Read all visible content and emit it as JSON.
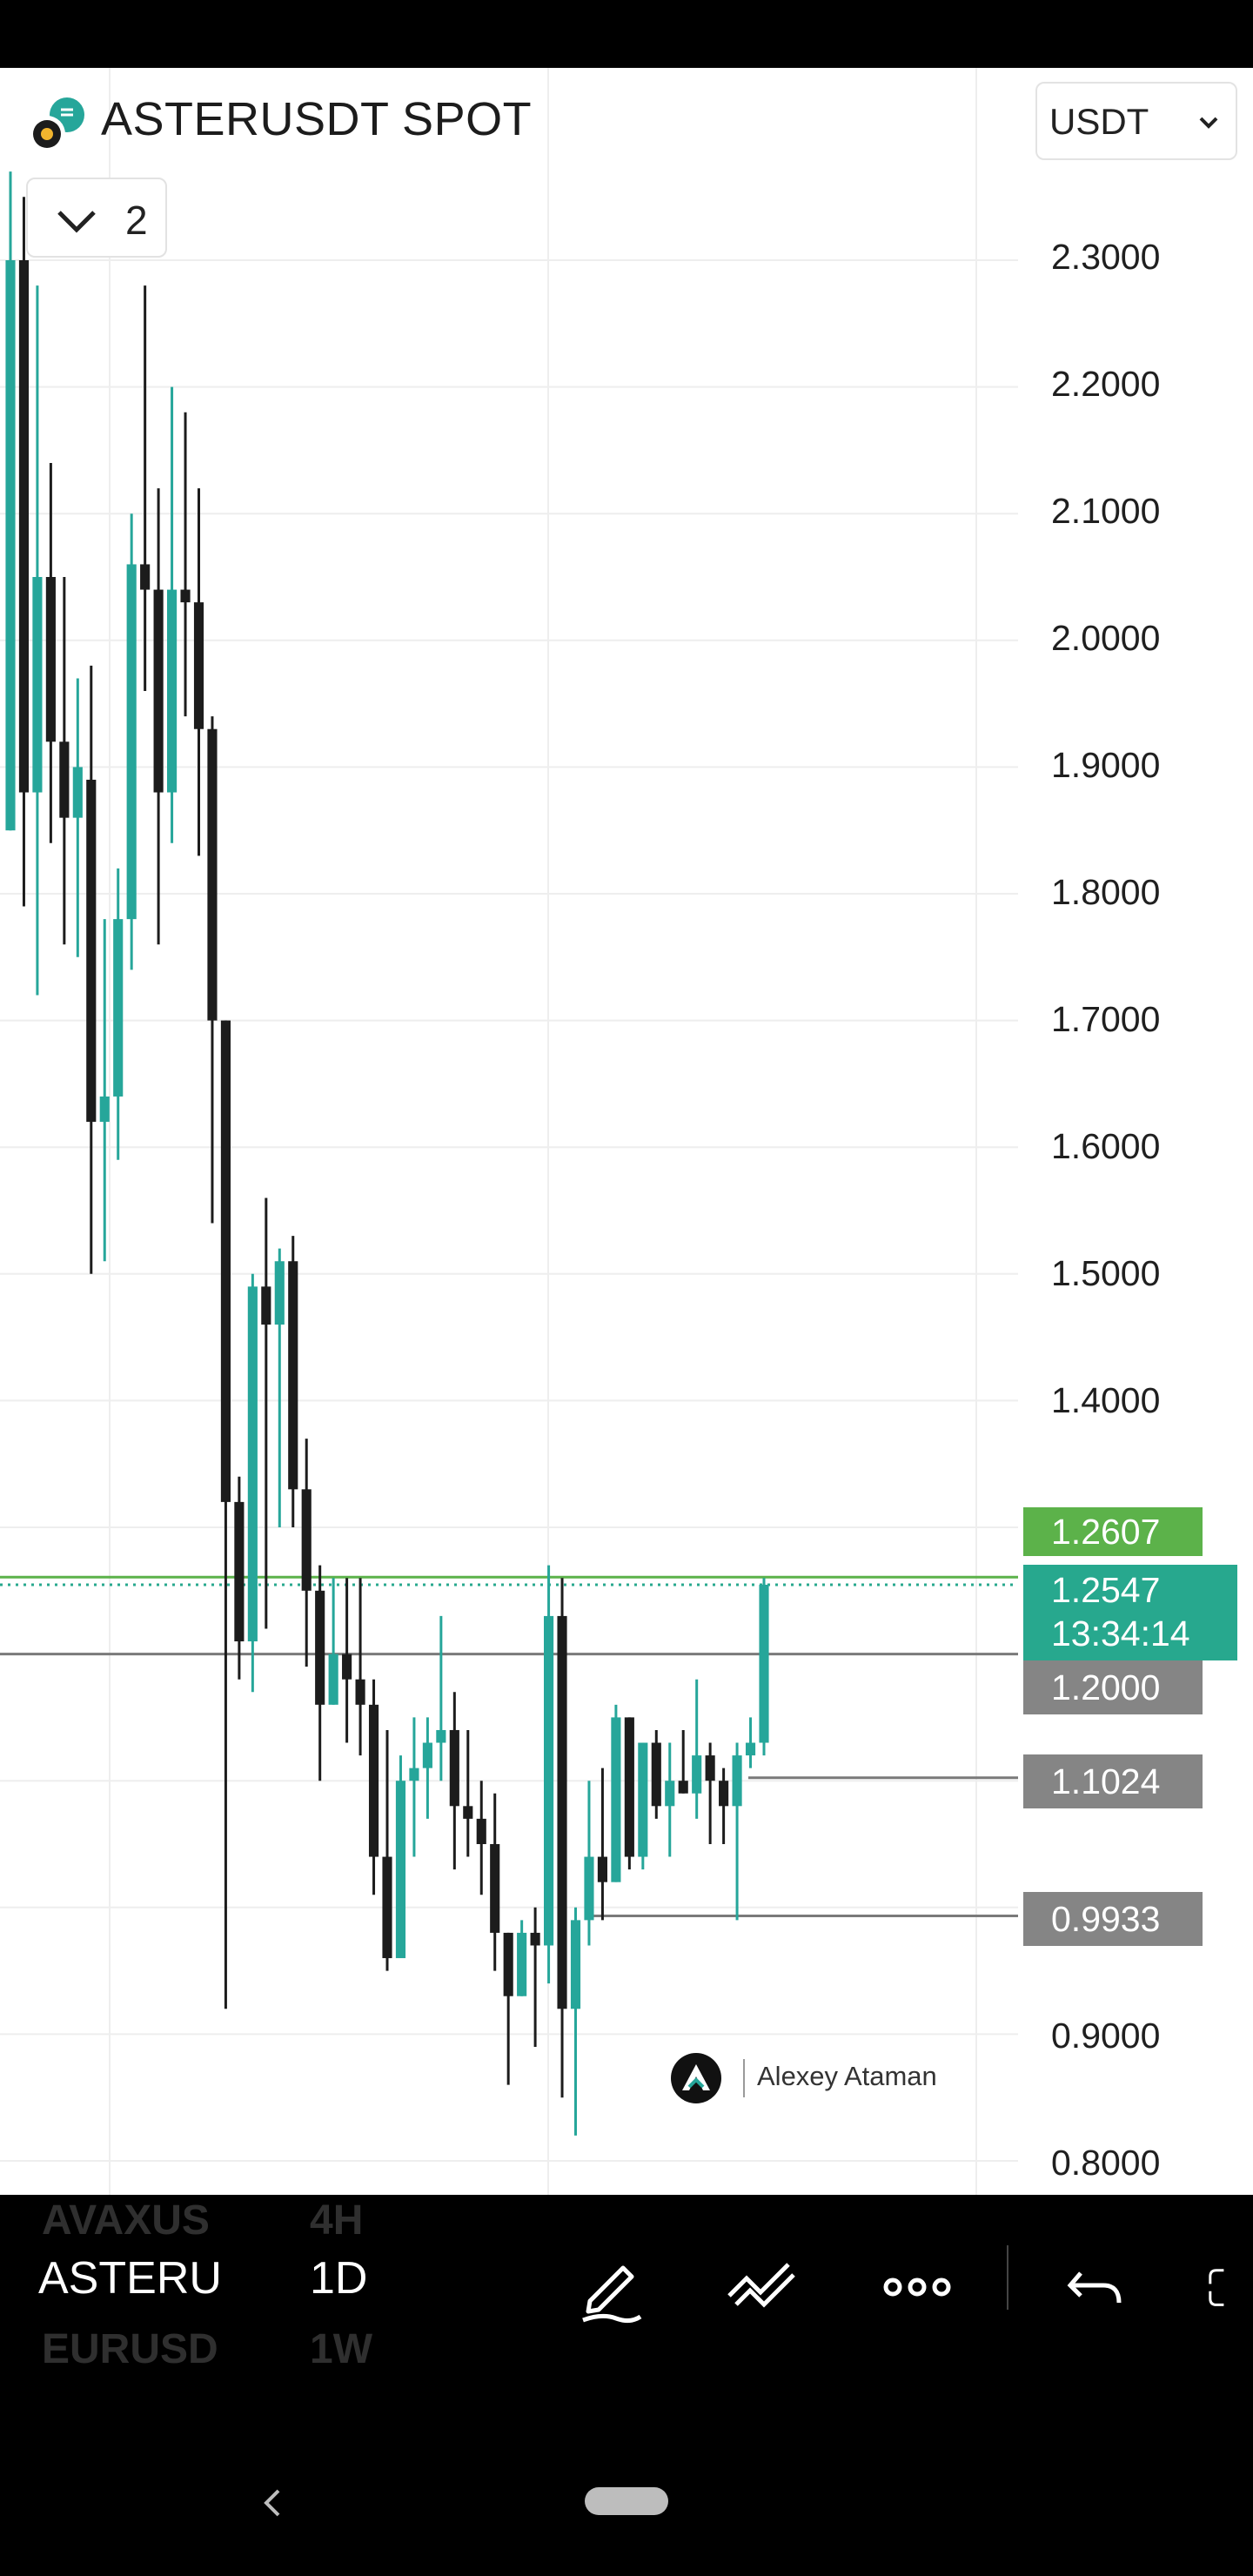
{
  "header": {
    "symbol_title": "ASTERUSDT SPOT",
    "currency": "USDT",
    "indicator_count": "2"
  },
  "price_axis": {
    "labels": [
      "2.3000",
      "2.2000",
      "2.1000",
      "2.0000",
      "1.9000",
      "1.8000",
      "1.7000",
      "1.6000",
      "1.5000",
      "1.4000",
      "0.9000",
      "0.8000"
    ]
  },
  "price_tags": [
    {
      "name": "high-tag",
      "text": "1.2607",
      "color": "#5cb24a"
    },
    {
      "name": "last-price-tag",
      "text": "1.2547",
      "sub": "13:34:14",
      "color": "#27a88e"
    },
    {
      "name": "level-1-2000-tag",
      "text": "1.2000",
      "color": "#858585"
    },
    {
      "name": "level-1-1024-tag",
      "text": "1.1024",
      "color": "#858585"
    },
    {
      "name": "level-0-9933-tag",
      "text": "0.9933",
      "color": "#858585"
    }
  ],
  "watermark": {
    "author": "Alexey Ataman",
    "icon": "author-logo-icon"
  },
  "toolbar": {
    "symbols": [
      "AVAXUS",
      "ASTERU",
      "EURUSD"
    ],
    "timeframes": [
      "4H",
      "1D",
      "1W"
    ],
    "tools": [
      "pen-icon",
      "trend-lines-icon",
      "more-icon",
      "undo-icon",
      "fullscreen-icon"
    ]
  },
  "colors": {
    "up": "#26a69a",
    "down": "#1c1c1c",
    "grid": "#eeeeee",
    "high_line": "#5cb24a",
    "last_line": "#27a88e",
    "level_line": "#7a7a7a"
  },
  "chart_data": {
    "type": "candlestick",
    "symbol": "ASTERUSDT SPOT",
    "y_axis": {
      "min": 0.78,
      "max": 2.38,
      "ticks": [
        2.3,
        2.2,
        2.1,
        2.0,
        1.9,
        1.8,
        1.7,
        1.6,
        1.5,
        1.4,
        0.9,
        0.8
      ]
    },
    "horizontal_levels": [
      1.2607,
      1.2547,
      1.2,
      1.1024,
      0.9933
    ],
    "candles": [
      {
        "o": 1.85,
        "h": 2.37,
        "l": 1.85,
        "c": 2.3,
        "up": true
      },
      {
        "o": 2.3,
        "h": 2.35,
        "l": 1.79,
        "c": 1.88,
        "up": false
      },
      {
        "o": 1.88,
        "h": 2.28,
        "l": 1.72,
        "c": 2.05,
        "up": true
      },
      {
        "o": 2.05,
        "h": 2.14,
        "l": 1.84,
        "c": 1.92,
        "up": false
      },
      {
        "o": 1.92,
        "h": 2.05,
        "l": 1.76,
        "c": 1.86,
        "up": false
      },
      {
        "o": 1.86,
        "h": 1.97,
        "l": 1.75,
        "c": 1.9,
        "up": true
      },
      {
        "o": 1.89,
        "h": 1.98,
        "l": 1.5,
        "c": 1.62,
        "up": false
      },
      {
        "o": 1.62,
        "h": 1.78,
        "l": 1.51,
        "c": 1.64,
        "up": true
      },
      {
        "o": 1.64,
        "h": 1.82,
        "l": 1.59,
        "c": 1.78,
        "up": true
      },
      {
        "o": 1.78,
        "h": 2.1,
        "l": 1.74,
        "c": 2.06,
        "up": true
      },
      {
        "o": 2.06,
        "h": 2.28,
        "l": 1.96,
        "c": 2.04,
        "up": false
      },
      {
        "o": 2.04,
        "h": 2.12,
        "l": 1.76,
        "c": 1.88,
        "up": false
      },
      {
        "o": 1.88,
        "h": 2.2,
        "l": 1.84,
        "c": 2.04,
        "up": true
      },
      {
        "o": 2.04,
        "h": 2.18,
        "l": 1.94,
        "c": 2.03,
        "up": false
      },
      {
        "o": 2.03,
        "h": 2.12,
        "l": 1.83,
        "c": 1.93,
        "up": false
      },
      {
        "o": 1.93,
        "h": 1.94,
        "l": 1.54,
        "c": 1.7,
        "up": false
      },
      {
        "o": 1.7,
        "h": 1.7,
        "l": 0.92,
        "c": 1.32,
        "up": false
      },
      {
        "o": 1.32,
        "h": 1.34,
        "l": 1.18,
        "c": 1.21,
        "up": false
      },
      {
        "o": 1.21,
        "h": 1.5,
        "l": 1.17,
        "c": 1.49,
        "up": true
      },
      {
        "o": 1.49,
        "h": 1.56,
        "l": 1.22,
        "c": 1.46,
        "up": false
      },
      {
        "o": 1.46,
        "h": 1.52,
        "l": 1.3,
        "c": 1.51,
        "up": true
      },
      {
        "o": 1.51,
        "h": 1.53,
        "l": 1.3,
        "c": 1.33,
        "up": false
      },
      {
        "o": 1.33,
        "h": 1.37,
        "l": 1.19,
        "c": 1.25,
        "up": false
      },
      {
        "o": 1.25,
        "h": 1.27,
        "l": 1.1,
        "c": 1.16,
        "up": false
      },
      {
        "o": 1.16,
        "h": 1.26,
        "l": 1.16,
        "c": 1.2,
        "up": true
      },
      {
        "o": 1.2,
        "h": 1.26,
        "l": 1.13,
        "c": 1.18,
        "up": false
      },
      {
        "o": 1.18,
        "h": 1.26,
        "l": 1.12,
        "c": 1.16,
        "up": false
      },
      {
        "o": 1.16,
        "h": 1.18,
        "l": 1.01,
        "c": 1.04,
        "up": false
      },
      {
        "o": 1.04,
        "h": 1.14,
        "l": 0.95,
        "c": 0.96,
        "up": false
      },
      {
        "o": 0.96,
        "h": 1.12,
        "l": 0.96,
        "c": 1.1,
        "up": true
      },
      {
        "o": 1.1,
        "h": 1.15,
        "l": 1.04,
        "c": 1.11,
        "up": true
      },
      {
        "o": 1.11,
        "h": 1.15,
        "l": 1.07,
        "c": 1.13,
        "up": true
      },
      {
        "o": 1.13,
        "h": 1.23,
        "l": 1.1,
        "c": 1.14,
        "up": true
      },
      {
        "o": 1.14,
        "h": 1.17,
        "l": 1.03,
        "c": 1.08,
        "up": false
      },
      {
        "o": 1.08,
        "h": 1.14,
        "l": 1.04,
        "c": 1.07,
        "up": false
      },
      {
        "o": 1.07,
        "h": 1.1,
        "l": 1.01,
        "c": 1.05,
        "up": false
      },
      {
        "o": 1.05,
        "h": 1.09,
        "l": 0.95,
        "c": 0.98,
        "up": false
      },
      {
        "o": 0.98,
        "h": 0.98,
        "l": 0.86,
        "c": 0.93,
        "up": false
      },
      {
        "o": 0.93,
        "h": 0.99,
        "l": 0.93,
        "c": 0.98,
        "up": true
      },
      {
        "o": 0.98,
        "h": 1.0,
        "l": 0.89,
        "c": 0.97,
        "up": false
      },
      {
        "o": 0.97,
        "h": 1.27,
        "l": 0.94,
        "c": 1.23,
        "up": true
      },
      {
        "o": 1.23,
        "h": 1.26,
        "l": 0.85,
        "c": 0.92,
        "up": false
      },
      {
        "o": 0.92,
        "h": 1.0,
        "l": 0.82,
        "c": 0.99,
        "up": true
      },
      {
        "o": 0.99,
        "h": 1.1,
        "l": 0.97,
        "c": 1.04,
        "up": true
      },
      {
        "o": 1.04,
        "h": 1.11,
        "l": 0.99,
        "c": 1.02,
        "up": false
      },
      {
        "o": 1.02,
        "h": 1.16,
        "l": 1.02,
        "c": 1.15,
        "up": true
      },
      {
        "o": 1.15,
        "h": 1.15,
        "l": 1.03,
        "c": 1.04,
        "up": false
      },
      {
        "o": 1.04,
        "h": 1.13,
        "l": 1.03,
        "c": 1.13,
        "up": true
      },
      {
        "o": 1.13,
        "h": 1.14,
        "l": 1.07,
        "c": 1.08,
        "up": false
      },
      {
        "o": 1.08,
        "h": 1.13,
        "l": 1.04,
        "c": 1.1,
        "up": true
      },
      {
        "o": 1.1,
        "h": 1.14,
        "l": 1.09,
        "c": 1.09,
        "up": false
      },
      {
        "o": 1.09,
        "h": 1.18,
        "l": 1.07,
        "c": 1.12,
        "up": true
      },
      {
        "o": 1.12,
        "h": 1.13,
        "l": 1.05,
        "c": 1.1,
        "up": false
      },
      {
        "o": 1.1,
        "h": 1.11,
        "l": 1.05,
        "c": 1.08,
        "up": false
      },
      {
        "o": 1.08,
        "h": 1.13,
        "l": 0.99,
        "c": 1.12,
        "up": true
      },
      {
        "o": 1.12,
        "h": 1.15,
        "l": 1.11,
        "c": 1.13,
        "up": true
      },
      {
        "o": 1.13,
        "h": 1.26,
        "l": 1.12,
        "c": 1.2547,
        "up": true
      }
    ]
  }
}
